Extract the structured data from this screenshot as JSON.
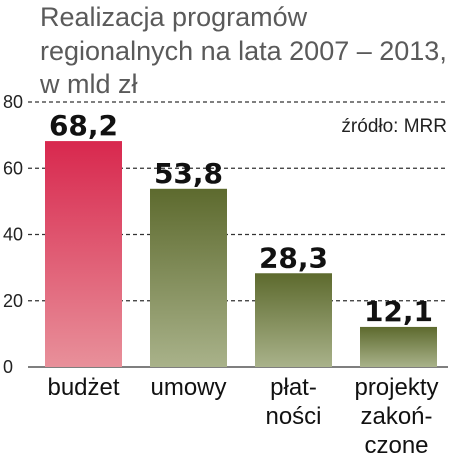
{
  "chart_data": {
    "type": "bar",
    "title_lines": [
      "Realizacja programów",
      "regionalnych na lata 2007 – 2013,",
      "w mld zł"
    ],
    "source": "źródło: MRR",
    "categories": [
      [
        "budżet"
      ],
      [
        "umowy"
      ],
      [
        "płat-",
        "ności"
      ],
      [
        "projekty",
        "zakoń-",
        "czone"
      ]
    ],
    "values": [
      68.2,
      53.8,
      28.3,
      12.1
    ],
    "value_labels": [
      "68,2",
      "53,8",
      "28,3",
      "12,1"
    ],
    "yticks": [
      0,
      20,
      40,
      60,
      80
    ],
    "ylim": [
      0,
      80
    ],
    "grid": "dashed horizontal",
    "colors": {
      "first_bar_top": "#d8284e",
      "first_bar_bottom": "#e8909a",
      "other_bar_top": "#5d6a2e",
      "other_bar_bottom": "#a9b28a",
      "grid": "#333333"
    }
  }
}
